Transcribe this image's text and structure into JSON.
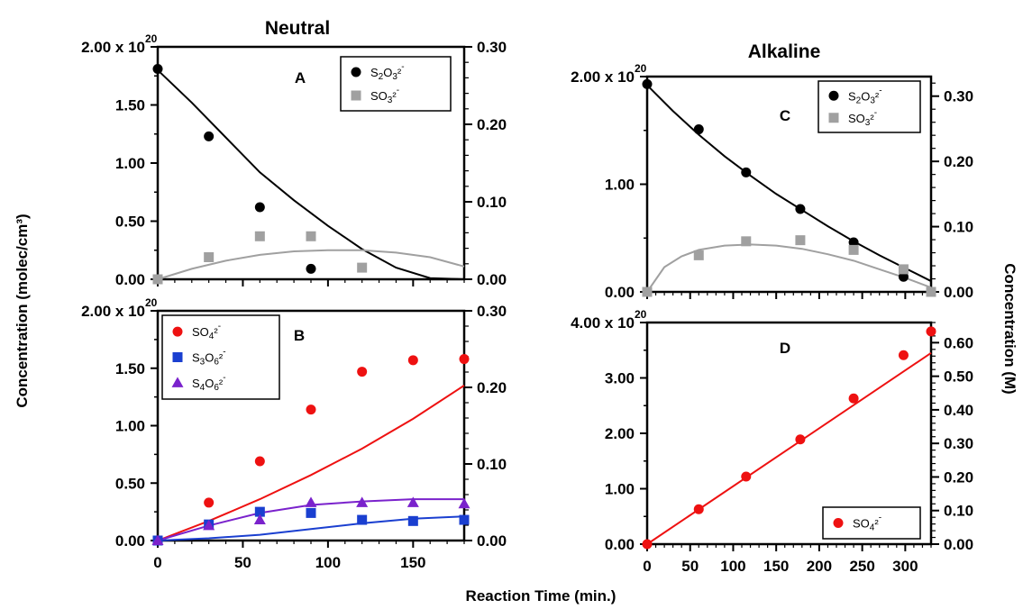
{
  "titles": {
    "left": "Neutral",
    "right": "Alkaline"
  },
  "xlabel": "Reaction Time (min.)",
  "ylabel_left": "Concentration (molec/cm³)",
  "ylabel_right": "Concentration (M)",
  "exponent": "20",
  "colors": {
    "black": "#000000",
    "gray": "#a0a0a0",
    "red": "#ee1111",
    "blue": "#1a3fd0",
    "purple": "#7a22cc"
  },
  "chart_data": [
    {
      "panel": "A",
      "type": "scatter",
      "title": "Neutral",
      "xlim": [
        0,
        180
      ],
      "ylim": [
        0,
        2.0
      ],
      "ylim_right": [
        0,
        0.3
      ],
      "x_ticks": [],
      "x_tick_labels": [],
      "y_ticks": [
        0,
        0.5,
        1.0,
        1.5,
        2.0
      ],
      "y_tick_labels": [
        "0.00",
        "0.50",
        "1.00",
        "1.50",
        "2.00 x 10"
      ],
      "y2_ticks": [
        0,
        0.1,
        0.2,
        0.3
      ],
      "y2_tick_labels": [
        "0.00",
        "0.10",
        "0.20",
        "0.30"
      ],
      "legend": "top-right",
      "series": [
        {
          "name": "S₂O₃²⁻",
          "color": "#000000",
          "marker": "circle",
          "x": [
            0,
            30,
            60,
            90
          ],
          "y": [
            1.81,
            1.23,
            0.62,
            0.09
          ],
          "fit_x": [
            0,
            20,
            40,
            60,
            80,
            100,
            120,
            140,
            160,
            180
          ],
          "fit_y": [
            1.8,
            1.52,
            1.22,
            0.92,
            0.68,
            0.46,
            0.26,
            0.1,
            0.01,
            0.0
          ]
        },
        {
          "name": "SO₃²⁻",
          "color": "#a0a0a0",
          "marker": "square",
          "x": [
            0,
            30,
            60,
            90,
            120
          ],
          "y": [
            0.0,
            0.19,
            0.37,
            0.37,
            0.1
          ],
          "fit_x": [
            0,
            20,
            40,
            60,
            80,
            100,
            120,
            140,
            160,
            180
          ],
          "fit_y": [
            0.0,
            0.09,
            0.16,
            0.21,
            0.24,
            0.25,
            0.25,
            0.23,
            0.19,
            0.11
          ]
        }
      ]
    },
    {
      "panel": "B",
      "type": "scatter",
      "xlim": [
        0,
        180
      ],
      "ylim": [
        0,
        2.0
      ],
      "ylim_right": [
        0,
        0.3
      ],
      "x_ticks": [
        0,
        50,
        100,
        150
      ],
      "x_tick_labels": [
        "0",
        "50",
        "100",
        "150"
      ],
      "y_ticks": [
        0,
        0.5,
        1.0,
        1.5,
        2.0
      ],
      "y_tick_labels": [
        "0.00",
        "0.50",
        "1.00",
        "1.50",
        "2.00 x 10"
      ],
      "y2_ticks": [
        0,
        0.1,
        0.2,
        0.3
      ],
      "y2_tick_labels": [
        "0.00",
        "0.10",
        "0.20",
        "0.30"
      ],
      "legend": "top-left",
      "series": [
        {
          "name": "SO₄²⁻",
          "color": "#ee1111",
          "marker": "circle",
          "x": [
            0,
            30,
            60,
            90,
            120,
            150,
            180
          ],
          "y": [
            0.0,
            0.33,
            0.69,
            1.14,
            1.47,
            1.57,
            1.58
          ],
          "fit_x": [
            0,
            30,
            60,
            90,
            120,
            150,
            180
          ],
          "fit_y": [
            0.0,
            0.17,
            0.36,
            0.57,
            0.8,
            1.06,
            1.35
          ]
        },
        {
          "name": "S₃O₆²⁻",
          "color": "#1a3fd0",
          "marker": "square",
          "x": [
            0,
            30,
            60,
            90,
            120,
            150,
            180
          ],
          "y": [
            0.0,
            0.14,
            0.25,
            0.24,
            0.18,
            0.17,
            0.18
          ],
          "fit_x": [
            0,
            30,
            60,
            90,
            120,
            150,
            180
          ],
          "fit_y": [
            0.0,
            0.02,
            0.05,
            0.1,
            0.15,
            0.19,
            0.21
          ]
        },
        {
          "name": "S₄O₆²⁻",
          "color": "#7a22cc",
          "marker": "triangle",
          "x": [
            0,
            30,
            60,
            90,
            120,
            150,
            180
          ],
          "y": [
            0.0,
            0.13,
            0.18,
            0.33,
            0.33,
            0.33,
            0.32
          ],
          "fit_x": [
            0,
            30,
            60,
            90,
            120,
            150,
            180
          ],
          "fit_y": [
            0.0,
            0.13,
            0.24,
            0.31,
            0.34,
            0.36,
            0.36
          ]
        }
      ]
    },
    {
      "panel": "C",
      "type": "scatter",
      "title": "Alkaline",
      "xlim": [
        0,
        330
      ],
      "ylim": [
        0,
        2.0
      ],
      "ylim_right": [
        0,
        0.33
      ],
      "x_ticks": [],
      "x_tick_labels": [],
      "y_ticks": [
        0,
        1.0,
        2.0
      ],
      "y_tick_labels": [
        "0.00",
        "1.00",
        "2.00 x 10"
      ],
      "y2_ticks": [
        0,
        0.1,
        0.2,
        0.3
      ],
      "y2_tick_labels": [
        "0.00",
        "0.10",
        "0.20",
        "0.30"
      ],
      "legend": "top-right",
      "series": [
        {
          "name": "S₂O₃²⁻",
          "color": "#000000",
          "marker": "circle",
          "x": [
            0,
            60,
            115,
            178,
            240,
            298
          ],
          "y": [
            1.93,
            1.51,
            1.11,
            0.77,
            0.46,
            0.14
          ],
          "fit_x": [
            0,
            30,
            60,
            90,
            120,
            150,
            180,
            210,
            240,
            270,
            300,
            330
          ],
          "fit_y": [
            1.92,
            1.68,
            1.46,
            1.26,
            1.08,
            0.91,
            0.76,
            0.61,
            0.47,
            0.34,
            0.22,
            0.1
          ]
        },
        {
          "name": "SO₃²⁻",
          "color": "#a0a0a0",
          "marker": "square",
          "x": [
            0,
            60,
            115,
            178,
            240,
            298,
            330
          ],
          "y": [
            0.0,
            0.34,
            0.47,
            0.48,
            0.39,
            0.21,
            0.0
          ],
          "fit_x": [
            0,
            20,
            40,
            60,
            90,
            120,
            150,
            180,
            210,
            240,
            270,
            300,
            330
          ],
          "fit_y": [
            0.0,
            0.23,
            0.33,
            0.39,
            0.43,
            0.44,
            0.43,
            0.4,
            0.35,
            0.29,
            0.21,
            0.13,
            0.04
          ]
        }
      ]
    },
    {
      "panel": "D",
      "type": "scatter",
      "xlim": [
        0,
        330
      ],
      "ylim": [
        0,
        4.0
      ],
      "ylim_right": [
        0,
        0.66
      ],
      "x_ticks": [
        0,
        50,
        100,
        150,
        200,
        250,
        300
      ],
      "x_tick_labels": [
        "0",
        "50",
        "100",
        "150",
        "200",
        "250",
        "300"
      ],
      "y_ticks": [
        0,
        1.0,
        2.0,
        3.0,
        4.0
      ],
      "y_tick_labels": [
        "0.00",
        "1.00",
        "2.00",
        "3.00",
        "4.00 x 10"
      ],
      "y2_ticks": [
        0,
        0.1,
        0.2,
        0.3,
        0.4,
        0.5,
        0.6
      ],
      "y2_tick_labels": [
        "0.00",
        "0.10",
        "0.20",
        "0.30",
        "0.40",
        "0.50",
        "0.60"
      ],
      "legend": "bottom-right",
      "series": [
        {
          "name": "SO₄²⁻",
          "color": "#ee1111",
          "marker": "circle",
          "x": [
            0,
            60,
            115,
            178,
            240,
            298,
            330
          ],
          "y": [
            0.0,
            0.63,
            1.22,
            1.89,
            2.63,
            3.41,
            3.84
          ],
          "fit_x": [
            0,
            330
          ],
          "fit_y": [
            0.0,
            3.45
          ]
        }
      ]
    }
  ]
}
